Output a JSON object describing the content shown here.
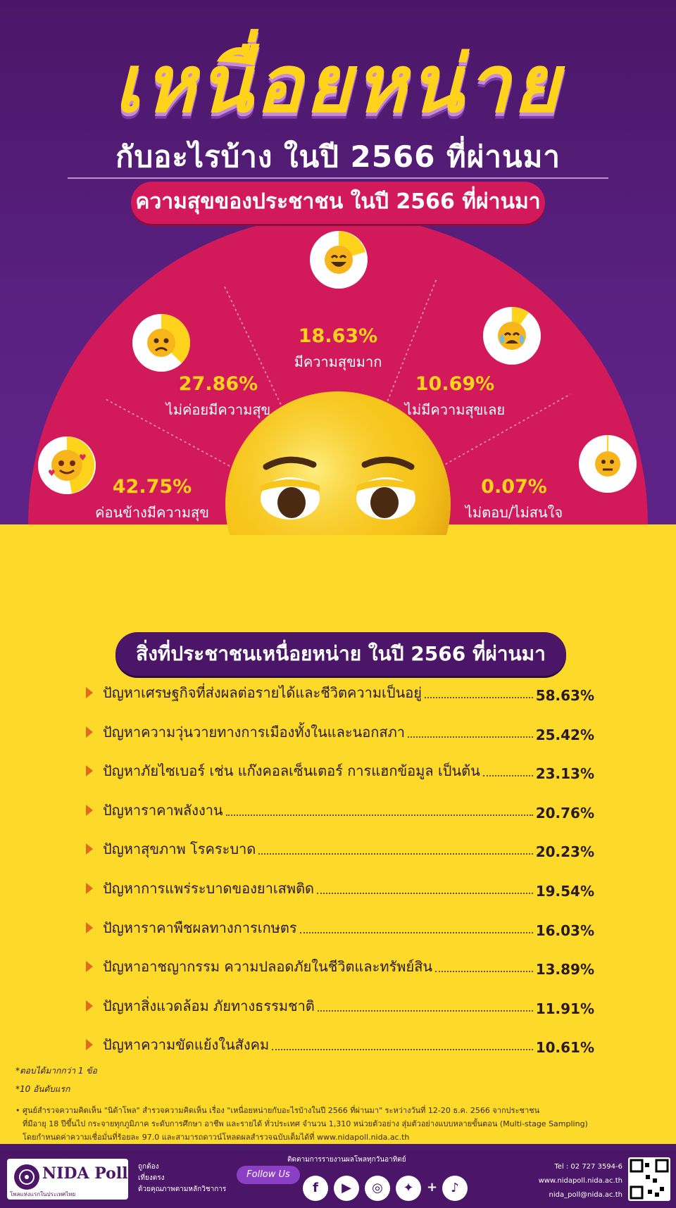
{
  "header": {
    "title": "เหนื่อยหน่าย",
    "subtitle": "กับอะไรบ้าง ในปี 2566 ที่ผ่านมา",
    "happiness_heading": "ความสุขของประชาชน ในปี 2566 ที่ผ่านมา"
  },
  "happiness": [
    {
      "value": "42.75%",
      "label": "ค่อนข้างมีความสุข",
      "icon": "love-face-icon"
    },
    {
      "value": "27.86%",
      "label": "ไม่ค่อยมีความสุข",
      "icon": "sad-face-icon"
    },
    {
      "value": "18.63%",
      "label": "มีความสุขมาก",
      "icon": "grin-face-icon"
    },
    {
      "value": "10.69%",
      "label": "ไม่มีความสุขเลย",
      "icon": "crying-face-icon"
    },
    {
      "value": "0.07%",
      "label": "ไม่ตอบ/ไม่สนใจ",
      "icon": "meh-face-icon"
    }
  ],
  "ranking_heading": "สิ่งที่ประชาชนเหนื่อยหน่าย ในปี 2566 ที่ผ่านมา",
  "chart_data": [
    {
      "type": "pie",
      "title": "ความสุขของประชาชน ในปี 2566 ที่ผ่านมา",
      "categories": [
        "ค่อนข้างมีความสุข",
        "ไม่ค่อยมีความสุข",
        "มีความสุขมาก",
        "ไม่มีความสุขเลย",
        "ไม่ตอบ/ไม่สนใจ"
      ],
      "values": [
        42.75,
        27.86,
        18.63,
        10.69,
        0.07
      ]
    },
    {
      "type": "table",
      "title": "สิ่งที่ประชาชนเหนื่อยหน่าย ในปี 2566 ที่ผ่านมา",
      "categories": [
        "ปัญหาเศรษฐกิจที่ส่งผลต่อรายได้และชีวิตความเป็นอยู่",
        "ปัญหาความวุ่นวายทางการเมืองทั้งในและนอกสภา",
        "ปัญหาภัยไซเบอร์ เช่น แก๊งคอลเซ็นเตอร์ การแฮกข้อมูล เป็นต้น",
        "ปัญหาราคาพลังงาน",
        "ปัญหาสุขภาพ โรคระบาด",
        "ปัญหาการแพร่ระบาดของยาเสพติด",
        "ปัญหาราคาพืชผลทางการเกษตร",
        "ปัญหาอาชญากรรม ความปลอดภัยในชีวิตและทรัพย์สิน",
        "ปัญหาสิ่งแวดล้อม ภัยทางธรรมชาติ",
        "ปัญหาความขัดแย้งในสังคม"
      ],
      "values": [
        58.63,
        25.42,
        23.13,
        20.76,
        20.23,
        19.54,
        16.03,
        13.89,
        11.91,
        10.61
      ]
    }
  ],
  "ranking_display": [
    "58.63%",
    "25.42%",
    "23.13%",
    "20.76%",
    "20.23%",
    "19.54%",
    "16.03%",
    "13.89%",
    "11.91%",
    "10.61%"
  ],
  "notes": {
    "note1": "*ตอบได้มากกว่า 1 ข้อ",
    "note2": "*10 อันดับแรก"
  },
  "methodology": [
    "• ศูนย์สำรวจความคิดเห็น \"นิด้าโพล\" สำรวจความคิดเห็น เรื่อง \"เหนื่อยหน่ายกับอะไรบ้างในปี 2566 ที่ผ่านมา\" ระหว่างวันที่ 12-20 ธ.ค. 2566 จากประชาชน",
    "ที่มีอายุ 18 ปีขึ้นไป กระจายทุกภูมิภาค ระดับการศึกษา อาชีพ และรายได้ ทั่วประเทศ จำนวน 1,310 หน่วยตัวอย่าง สุ่มตัวอย่างแบบหลายขั้นตอน (Multi-stage Sampling)",
    "โดยกำหนดค่าความเชื่อมั่นที่ร้อยละ 97.0 และสามารถดาวน์โหลดผลสำรวจฉบับเต็มได้ที่ www.nidapoll.nida.ac.th"
  ],
  "footer": {
    "logo": "NIDA Poll",
    "logo_sub": "โพลแห่งแรกในประเทศไทย",
    "tagline": [
      "ถูกต้อง",
      "เที่ยงตรง",
      "ด้วยคุณภาพตามหลักวิชาการ"
    ],
    "follow_caption": "ติดตามการรายงานผลโพลทุกวันอาทิตย์",
    "follow": "Follow Us",
    "phone": "Tel : 02 727 3594-6",
    "website": "www.nidapoll.nida.ac.th",
    "email": "nida_poll@nida.ac.th"
  },
  "colors": {
    "purple": "#4b1668",
    "magenta": "#d2195a",
    "yellow": "#fdd92a",
    "accent_yellow": "#ffd21c"
  }
}
